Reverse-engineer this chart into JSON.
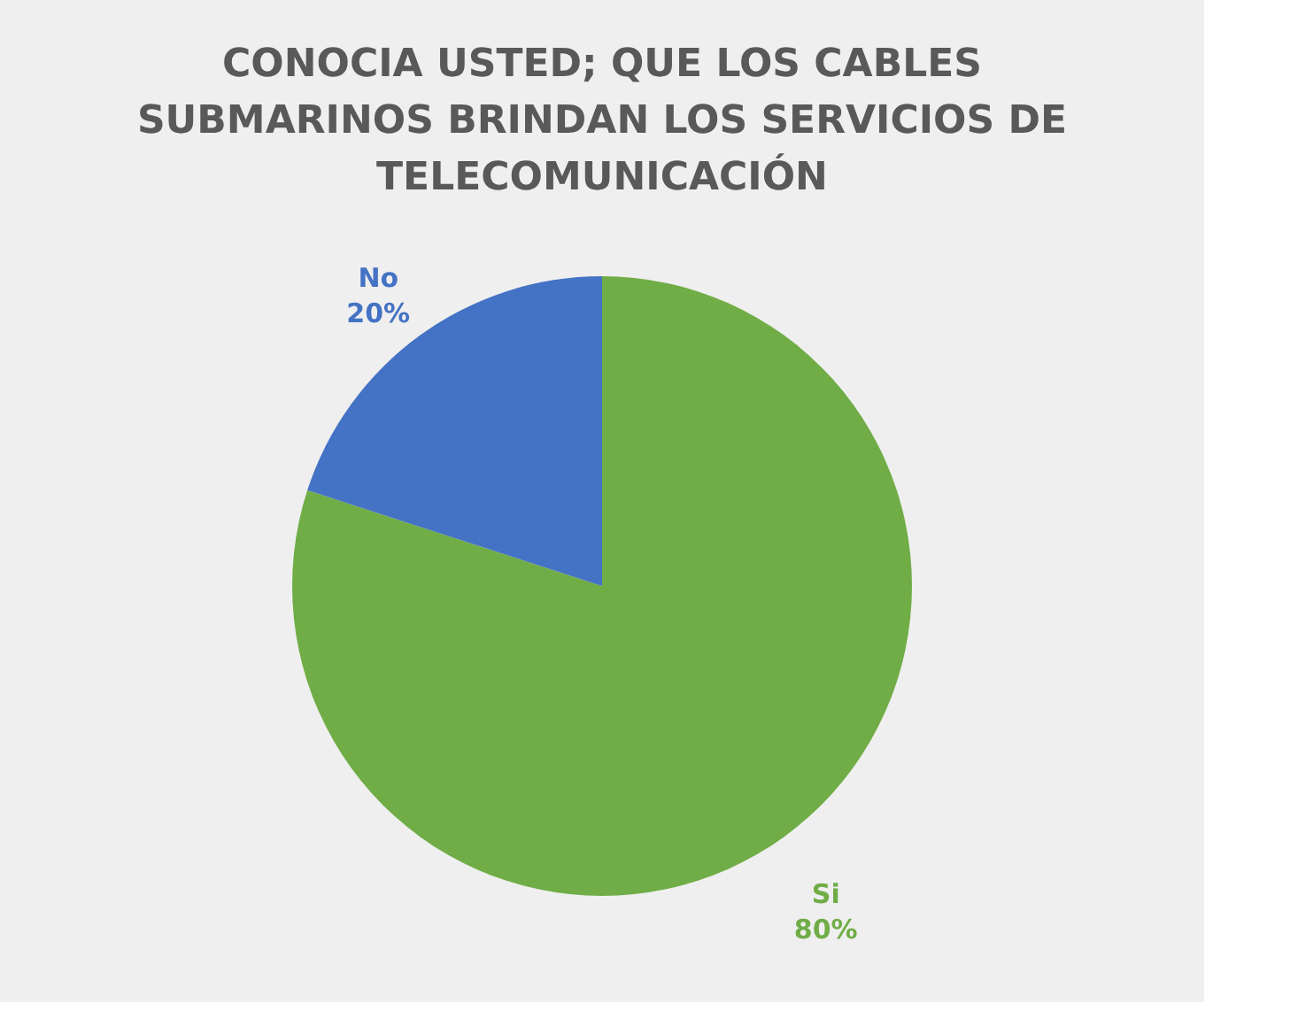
{
  "chart_data": {
    "type": "pie",
    "title": "CONOCIA USTED; QUE LOS CABLES SUBMARINOS BRINDAN LOS SERVICIOS DE TELECOMUNICACIÓN",
    "categories": [
      "Si",
      "No"
    ],
    "values": [
      80,
      20
    ],
    "colors": [
      "#70ad47",
      "#4472c4"
    ],
    "value_labels": [
      "80%",
      "20%"
    ],
    "legend": false
  }
}
